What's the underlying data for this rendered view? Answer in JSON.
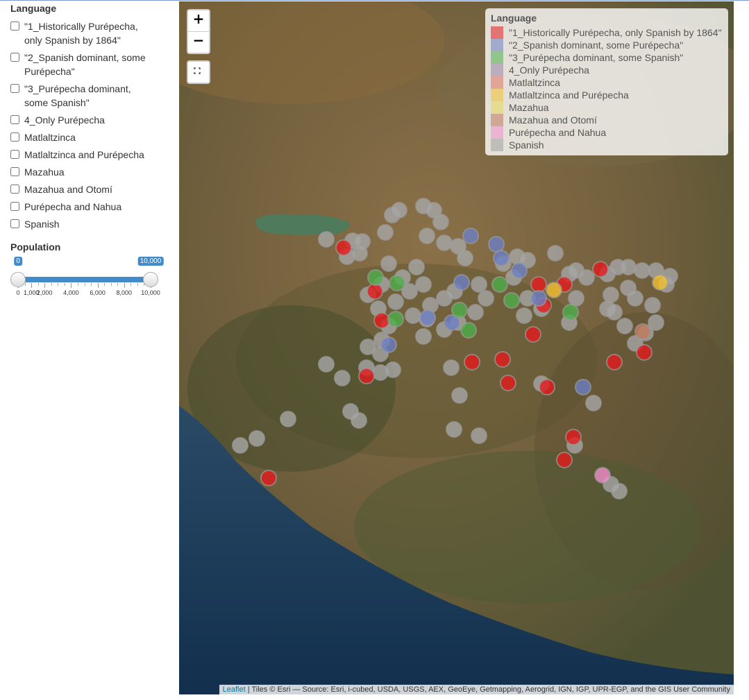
{
  "sidebar": {
    "language": {
      "label": "Language",
      "options": [
        "\"1_Historically Purépecha, only Spanish by 1864\"",
        "\"2_Spanish dominant, some Purépecha\"",
        "\"3_Purépecha dominant, some Spanish\"",
        "4_Only Purépecha",
        "Matlaltzinca",
        "Matlaltzinca and Purépecha",
        "Mazahua",
        "Mazahua and Otomí",
        "Purépecha and Nahua",
        "Spanish"
      ]
    },
    "population": {
      "label": "Population",
      "value": [
        {
          "value": 0,
          "label": "0"
        },
        {
          "value": 10000,
          "label": "10,000"
        }
      ],
      "ticks": [
        {
          "value": 0,
          "label": "0"
        },
        {
          "value": 1000,
          "label": "1,000"
        },
        {
          "value": 2000,
          "label": "2,000"
        },
        {
          "value": 4000,
          "label": "4,000"
        },
        {
          "value": 6000,
          "label": "6,000"
        },
        {
          "value": 8000,
          "label": "8,000"
        },
        {
          "value": 10000,
          "label": "10,000"
        }
      ]
    }
  },
  "map": {
    "zoom_in": "+",
    "zoom_out": "−",
    "legend": {
      "title": "Language",
      "items": [
        {
          "label": "\"1_Historically Purépecha, only Spanish by 1864\"",
          "color": "#e41a1c"
        },
        {
          "label": "\"2_Spanish dominant, some Purépecha\"",
          "color": "#6b7fc4"
        },
        {
          "label": "\"3_Purépecha dominant, some Spanish\"",
          "color": "#4daf4a"
        },
        {
          "label": "4_Only Purépecha",
          "color": "#9a84a8"
        },
        {
          "label": "Matlaltzinca",
          "color": "#e0735f"
        },
        {
          "label": "Matlaltzinca and Purépecha",
          "color": "#f2c12e"
        },
        {
          "label": "Mazahua",
          "color": "#e6d85a"
        },
        {
          "label": "Mazahua and Otomí",
          "color": "#c07a5e"
        },
        {
          "label": "Purépecha and Nahua",
          "color": "#f08fc9"
        },
        {
          "label": "Spanish",
          "color": "#a0a0a0"
        }
      ]
    },
    "attribution": {
      "link": "Leaflet",
      "text": " | Tiles © Esri — Source: Esri, i-cubed, USDA, USGS, AEX, GeoEye, Getmapping, Aerogrid, IGN, IGP, UPR-EGP, and the GIS User Community"
    }
  }
}
